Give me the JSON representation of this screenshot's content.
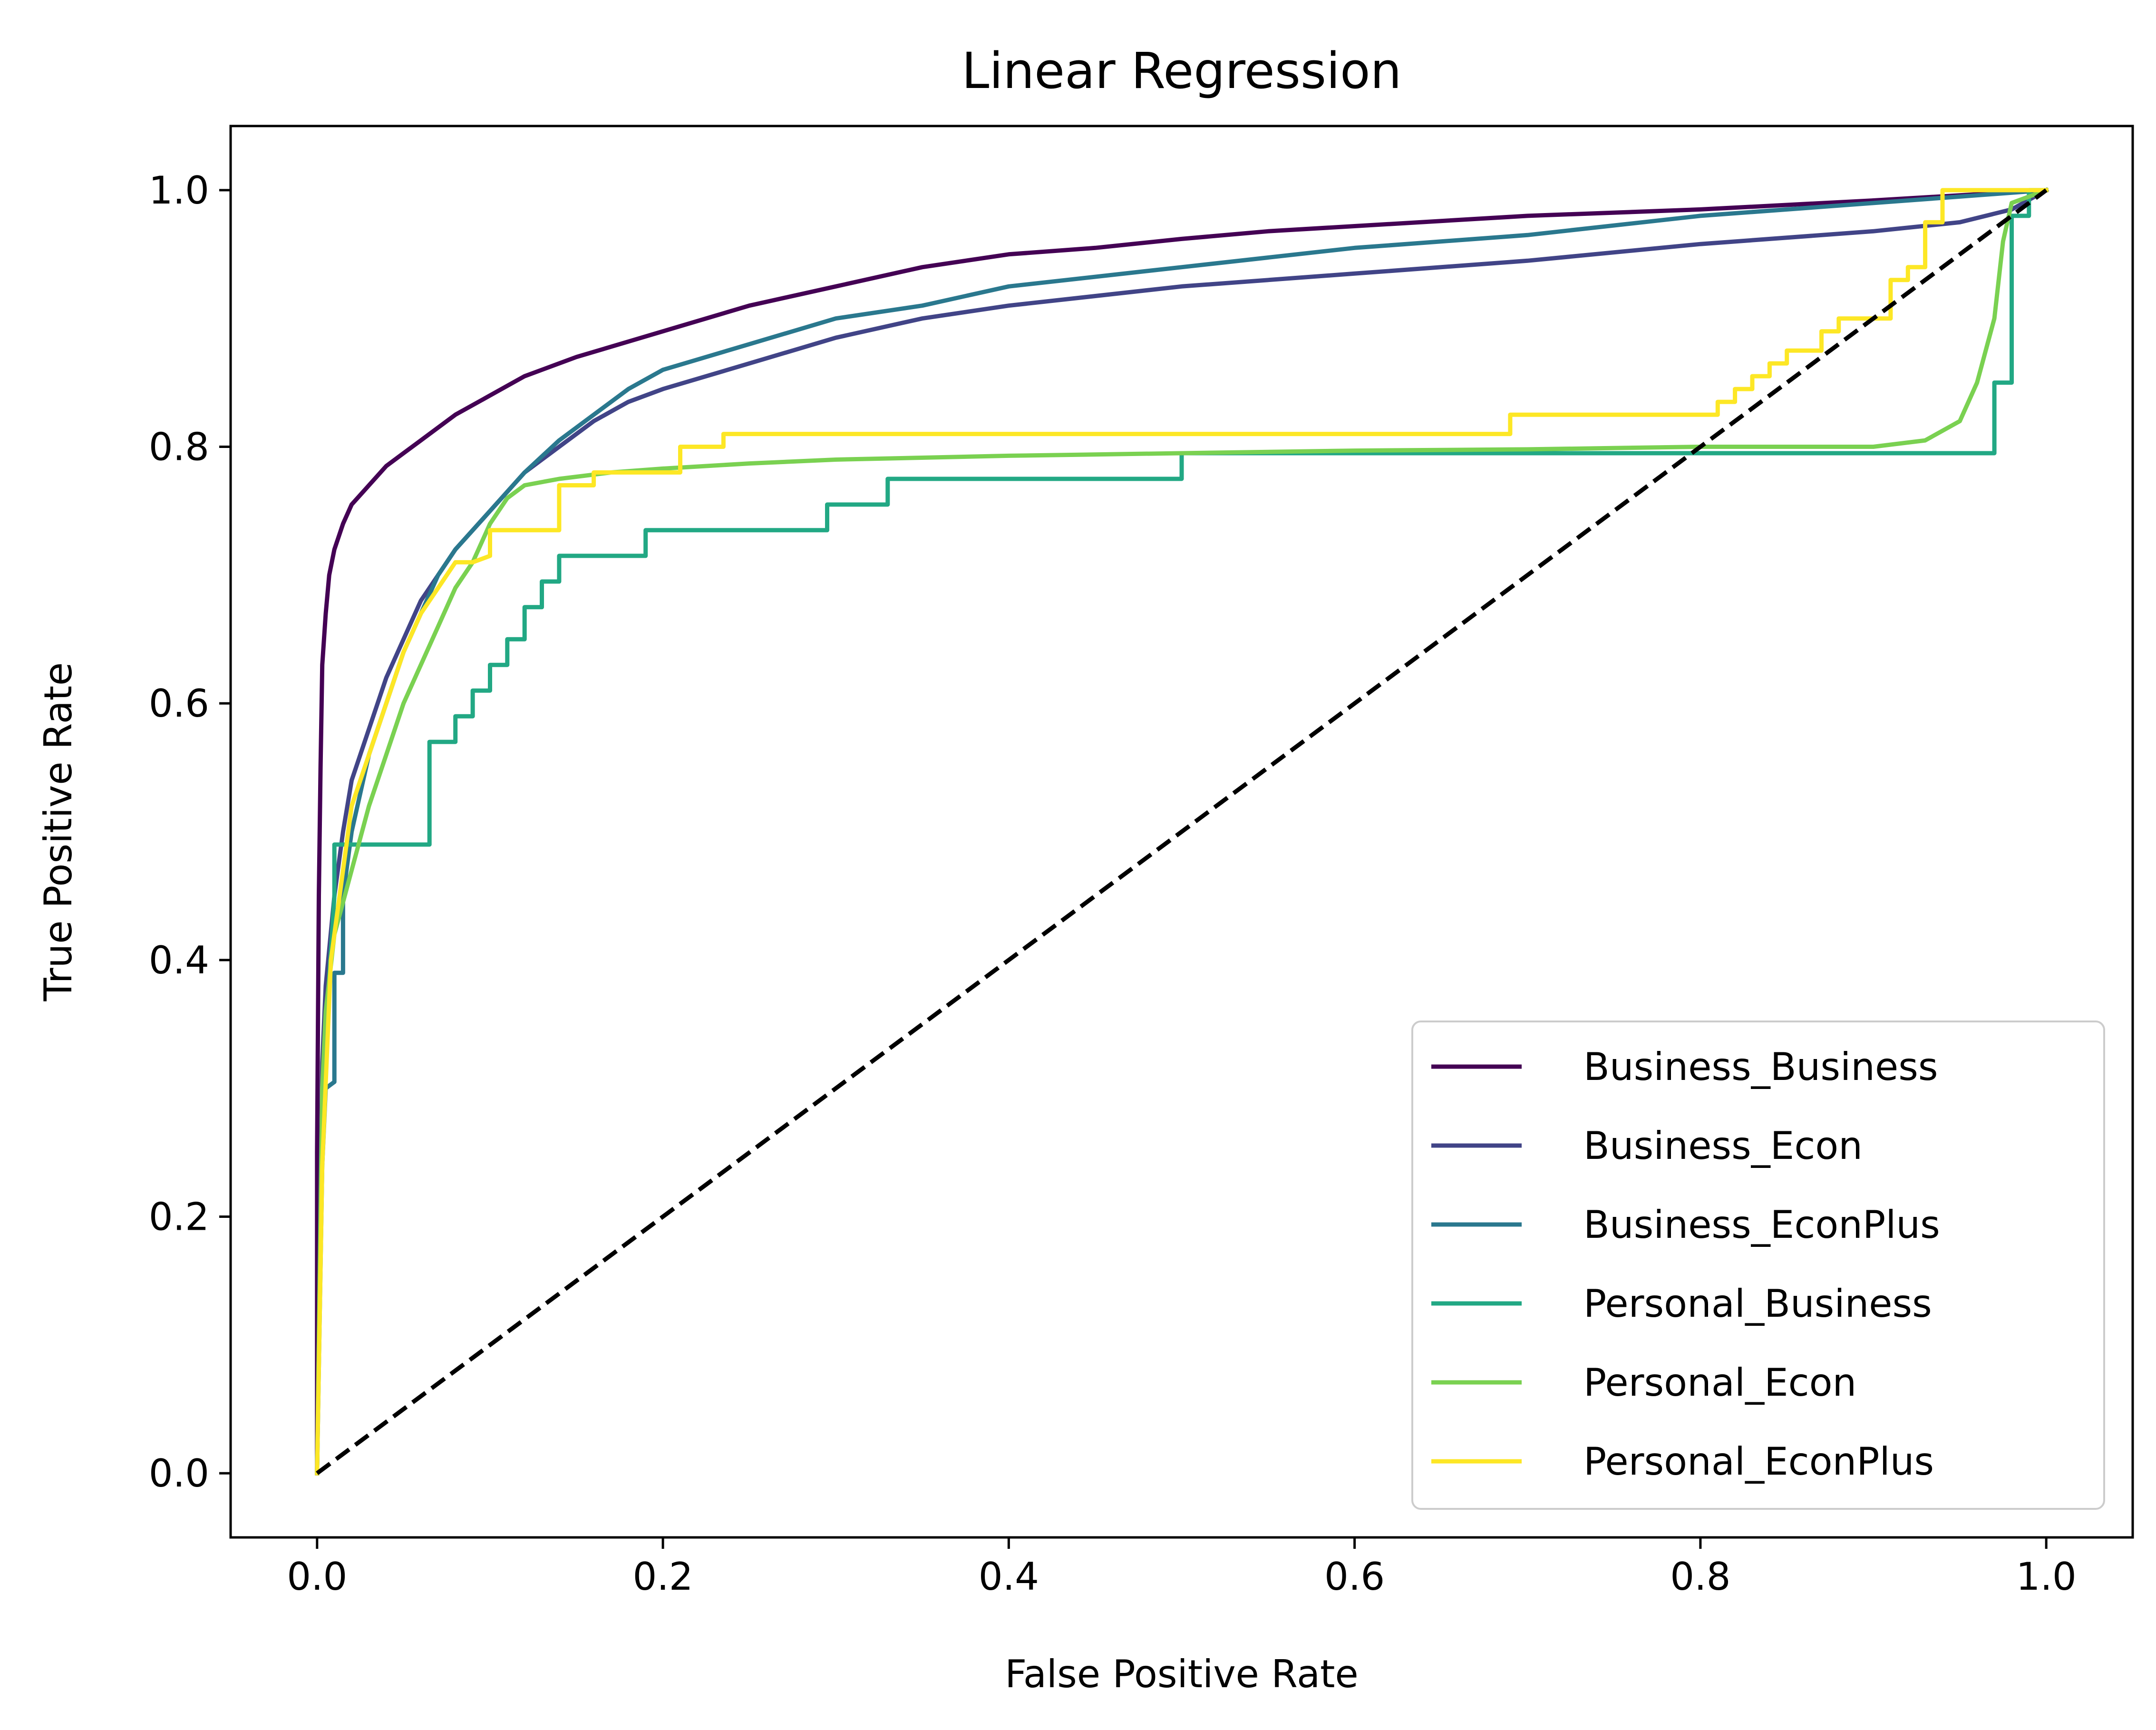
{
  "chart_data": {
    "type": "line",
    "title": "Linear Regression",
    "xlabel": "False Positive Rate",
    "ylabel": "True Positive Rate",
    "xlim": [
      -0.05,
      1.05
    ],
    "ylim": [
      -0.05,
      1.05
    ],
    "xticks": [
      "0.0",
      "0.2",
      "0.4",
      "0.6",
      "0.8",
      "1.0"
    ],
    "yticks": [
      "0.0",
      "0.2",
      "0.4",
      "0.6",
      "0.8",
      "1.0"
    ],
    "grid": false,
    "legend_position": "lower-right",
    "diagonal": {
      "x": [
        0,
        1
      ],
      "y": [
        0,
        1
      ],
      "color": "#000000",
      "style": "dashed"
    },
    "series": [
      {
        "name": "Business_Business",
        "color": "#440154",
        "x": [
          0,
          0,
          0.001,
          0.002,
          0.003,
          0.005,
          0.007,
          0.01,
          0.015,
          0.02,
          0.03,
          0.04,
          0.05,
          0.06,
          0.08,
          0.1,
          0.12,
          0.15,
          0.2,
          0.25,
          0.3,
          0.35,
          0.4,
          0.45,
          0.5,
          0.55,
          0.6,
          0.7,
          0.8,
          0.9,
          0.95,
          1.0
        ],
        "y": [
          0,
          0.25,
          0.45,
          0.55,
          0.63,
          0.67,
          0.7,
          0.72,
          0.74,
          0.755,
          0.77,
          0.785,
          0.795,
          0.805,
          0.825,
          0.84,
          0.855,
          0.87,
          0.89,
          0.91,
          0.925,
          0.94,
          0.95,
          0.955,
          0.962,
          0.968,
          0.972,
          0.98,
          0.985,
          0.992,
          0.996,
          1.0
        ]
      },
      {
        "name": "Business_Econ",
        "color": "#414487",
        "x": [
          0,
          0.003,
          0.005,
          0.01,
          0.015,
          0.02,
          0.03,
          0.04,
          0.05,
          0.06,
          0.07,
          0.08,
          0.1,
          0.12,
          0.14,
          0.16,
          0.18,
          0.2,
          0.25,
          0.3,
          0.35,
          0.4,
          0.5,
          0.6,
          0.7,
          0.8,
          0.9,
          0.95,
          0.98,
          1.0
        ],
        "y": [
          0,
          0.32,
          0.38,
          0.45,
          0.5,
          0.54,
          0.58,
          0.62,
          0.65,
          0.68,
          0.7,
          0.72,
          0.75,
          0.78,
          0.8,
          0.82,
          0.835,
          0.845,
          0.865,
          0.885,
          0.9,
          0.91,
          0.925,
          0.935,
          0.945,
          0.958,
          0.968,
          0.975,
          0.985,
          1.0
        ]
      },
      {
        "name": "Business_EconPlus",
        "color": "#2a788e",
        "x": [
          0,
          0.003,
          0.005,
          0.01,
          0.01,
          0.015,
          0.015,
          0.02,
          0.03,
          0.04,
          0.05,
          0.06,
          0.07,
          0.08,
          0.1,
          0.12,
          0.14,
          0.16,
          0.18,
          0.2,
          0.25,
          0.3,
          0.35,
          0.4,
          0.5,
          0.6,
          0.7,
          0.8,
          0.9,
          0.95,
          0.98,
          1.0
        ],
        "y": [
          0,
          0.24,
          0.3,
          0.305,
          0.39,
          0.39,
          0.45,
          0.5,
          0.56,
          0.6,
          0.64,
          0.67,
          0.7,
          0.72,
          0.75,
          0.78,
          0.805,
          0.825,
          0.845,
          0.86,
          0.88,
          0.9,
          0.91,
          0.925,
          0.94,
          0.955,
          0.965,
          0.98,
          0.99,
          0.995,
          0.998,
          1.0
        ]
      },
      {
        "name": "Personal_Business",
        "color": "#22a884",
        "x": [
          0,
          0.003,
          0.01,
          0.01,
          0.065,
          0.065,
          0.08,
          0.08,
          0.09,
          0.09,
          0.1,
          0.1,
          0.11,
          0.11,
          0.12,
          0.12,
          0.13,
          0.13,
          0.14,
          0.14,
          0.19,
          0.19,
          0.295,
          0.295,
          0.33,
          0.33,
          0.5,
          0.5,
          0.97,
          0.97,
          0.98,
          0.98,
          0.99,
          0.99,
          1.0
        ],
        "y": [
          0,
          0.3,
          0.45,
          0.49,
          0.49,
          0.57,
          0.57,
          0.59,
          0.59,
          0.61,
          0.61,
          0.63,
          0.63,
          0.65,
          0.65,
          0.675,
          0.675,
          0.695,
          0.695,
          0.715,
          0.715,
          0.735,
          0.735,
          0.755,
          0.755,
          0.775,
          0.775,
          0.795,
          0.795,
          0.85,
          0.85,
          0.98,
          0.98,
          1.0,
          1.0
        ]
      },
      {
        "name": "Personal_Econ",
        "color": "#7ad151",
        "x": [
          0,
          0.003,
          0.005,
          0.01,
          0.02,
          0.03,
          0.04,
          0.05,
          0.06,
          0.07,
          0.08,
          0.09,
          0.1,
          0.11,
          0.12,
          0.14,
          0.17,
          0.2,
          0.25,
          0.3,
          0.4,
          0.5,
          0.6,
          0.7,
          0.8,
          0.9,
          0.93,
          0.95,
          0.96,
          0.97,
          0.975,
          0.98,
          1.0
        ],
        "y": [
          0,
          0.3,
          0.36,
          0.42,
          0.47,
          0.52,
          0.56,
          0.6,
          0.63,
          0.66,
          0.69,
          0.71,
          0.74,
          0.76,
          0.77,
          0.775,
          0.78,
          0.783,
          0.787,
          0.79,
          0.793,
          0.795,
          0.797,
          0.798,
          0.8,
          0.8,
          0.805,
          0.82,
          0.85,
          0.9,
          0.96,
          0.99,
          1.0
        ]
      },
      {
        "name": "Personal_EconPlus",
        "color": "#fde725",
        "x": [
          0,
          0.003,
          0.008,
          0.015,
          0.02,
          0.03,
          0.04,
          0.05,
          0.06,
          0.07,
          0.08,
          0.09,
          0.1,
          0.1,
          0.14,
          0.14,
          0.16,
          0.16,
          0.21,
          0.21,
          0.235,
          0.235,
          0.69,
          0.69,
          0.81,
          0.81,
          0.82,
          0.82,
          0.83,
          0.83,
          0.84,
          0.84,
          0.85,
          0.85,
          0.87,
          0.87,
          0.88,
          0.88,
          0.91,
          0.91,
          0.92,
          0.92,
          0.93,
          0.93,
          0.94,
          0.94,
          1.0
        ],
        "y": [
          0,
          0.24,
          0.4,
          0.47,
          0.52,
          0.56,
          0.6,
          0.64,
          0.67,
          0.69,
          0.71,
          0.71,
          0.715,
          0.735,
          0.735,
          0.77,
          0.77,
          0.78,
          0.78,
          0.8,
          0.8,
          0.81,
          0.81,
          0.825,
          0.825,
          0.835,
          0.835,
          0.845,
          0.845,
          0.855,
          0.855,
          0.865,
          0.865,
          0.875,
          0.875,
          0.89,
          0.89,
          0.9,
          0.9,
          0.93,
          0.93,
          0.94,
          0.94,
          0.975,
          0.975,
          1.0,
          1.0
        ]
      }
    ]
  }
}
